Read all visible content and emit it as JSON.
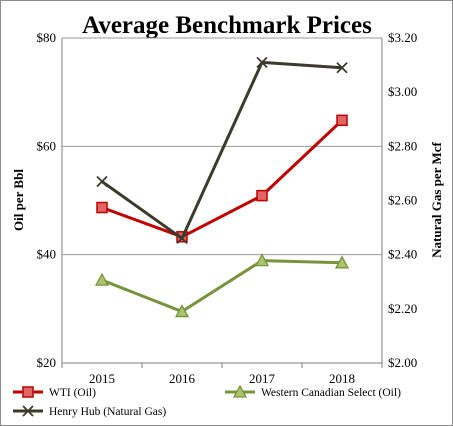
{
  "chart_data": {
    "type": "line",
    "title": "Average Benchmark Prices",
    "categories": [
      "2015",
      "2016",
      "2017",
      "2018"
    ],
    "ylabel": "Oil per Bbl",
    "y2label": "Natural Gas per Mcf",
    "ylim": [
      20,
      80
    ],
    "y2lim": [
      2.0,
      3.2
    ],
    "yticks": [
      "$20",
      "$40",
      "$60",
      "$80"
    ],
    "y2ticks": [
      "$2.00",
      "$2.20",
      "$2.40",
      "$2.60",
      "$2.80",
      "$3.00",
      "$3.20"
    ],
    "grid": true,
    "legend_position": "bottom",
    "series": [
      {
        "name": "WTI (Oil)",
        "axis": "left",
        "color": "#c00000",
        "marker": "square",
        "values": [
          48.7,
          43.3,
          50.9,
          64.8
        ]
      },
      {
        "name": "Western Canadian Select (Oil)",
        "axis": "left",
        "color": "#77933c",
        "marker": "triangle",
        "values": [
          35.3,
          29.5,
          38.9,
          38.5
        ]
      },
      {
        "name": "Henry Hub (Natural Gas)",
        "axis": "right",
        "color": "#3b3a2b",
        "marker": "x",
        "values": [
          2.67,
          2.46,
          3.11,
          3.09
        ]
      }
    ]
  }
}
